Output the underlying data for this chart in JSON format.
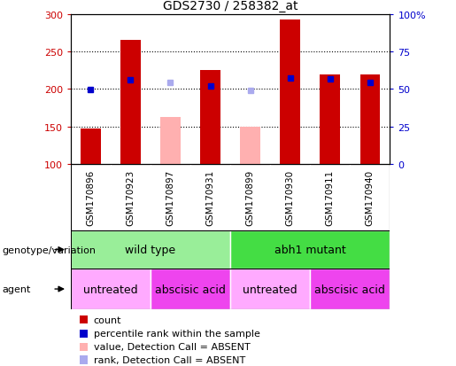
{
  "title": "GDS2730 / 258382_at",
  "samples": [
    "GSM170896",
    "GSM170923",
    "GSM170897",
    "GSM170931",
    "GSM170899",
    "GSM170930",
    "GSM170911",
    "GSM170940"
  ],
  "count_values": [
    148,
    265,
    null,
    225,
    null,
    293,
    219,
    219
  ],
  "count_absent_values": [
    null,
    null,
    163,
    null,
    150,
    null,
    null,
    null
  ],
  "percentile_values": [
    199,
    212,
    null,
    204,
    null,
    215,
    214,
    209
  ],
  "percentile_absent_values": [
    null,
    null,
    209,
    null,
    198,
    null,
    null,
    null
  ],
  "ylim_left": [
    100,
    300
  ],
  "ylim_right": [
    0,
    100
  ],
  "yticks_left": [
    100,
    150,
    200,
    250,
    300
  ],
  "yticks_right": [
    0,
    25,
    50,
    75,
    100
  ],
  "yticklabels_right": [
    "0",
    "25",
    "50",
    "75",
    "100%"
  ],
  "bar_color_count": "#cc0000",
  "bar_color_absent": "#ffb0b0",
  "dot_color_percentile": "#0000cc",
  "dot_color_absent": "#aaaaee",
  "bg_color": "#ffffff",
  "left_axis_color": "#cc0000",
  "right_axis_color": "#0000cc",
  "xlabels_bg": "#cccccc",
  "genotype_groups": [
    {
      "label": "wild type",
      "start": 0,
      "end": 4,
      "color": "#99ee99"
    },
    {
      "label": "abh1 mutant",
      "start": 4,
      "end": 8,
      "color": "#44dd44"
    }
  ],
  "agent_groups": [
    {
      "label": "untreated",
      "start": 0,
      "end": 2,
      "color": "#ffaaff"
    },
    {
      "label": "abscisic acid",
      "start": 2,
      "end": 4,
      "color": "#ee44ee"
    },
    {
      "label": "untreated",
      "start": 4,
      "end": 6,
      "color": "#ffaaff"
    },
    {
      "label": "abscisic acid",
      "start": 6,
      "end": 8,
      "color": "#ee44ee"
    }
  ],
  "legend_items": [
    {
      "label": "count",
      "color": "#cc0000"
    },
    {
      "label": "percentile rank within the sample",
      "color": "#0000cc"
    },
    {
      "label": "value, Detection Call = ABSENT",
      "color": "#ffb0b0"
    },
    {
      "label": "rank, Detection Call = ABSENT",
      "color": "#aaaaee"
    }
  ],
  "genotype_label": "genotype/variation",
  "agent_label": "agent"
}
